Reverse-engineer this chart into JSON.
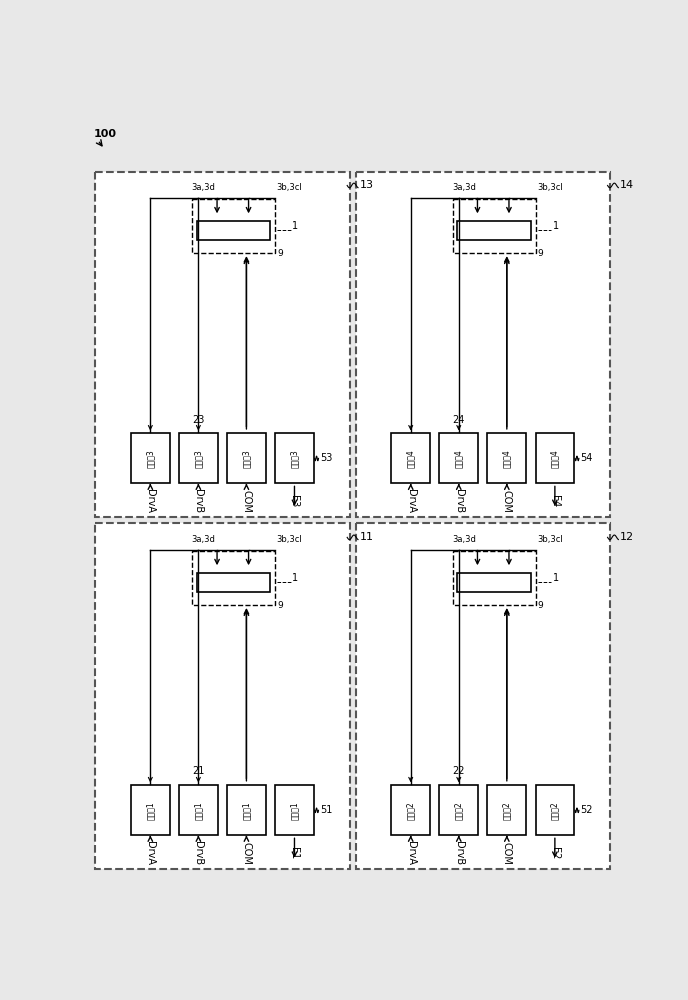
{
  "bg": "#e8e8e8",
  "panel_bg": "#ffffff",
  "panels": [
    {
      "id": "top_left",
      "label": "13",
      "group_num": "23",
      "encoder_label": "53",
      "signal_labels": [
        "DrvA",
        "DrvB",
        "COM",
        "E3"
      ],
      "relay_texts": [
        "继电刨3",
        "继电刨3",
        "继电刨3"
      ],
      "encoder_text": "编码刨3",
      "lbl_3a3d": "3a,3d",
      "lbl_3b3c": "3b,3cl",
      "lbl_9": "9",
      "lbl_1": "1",
      "col": 0,
      "row": 0
    },
    {
      "id": "top_right",
      "label": "14",
      "group_num": "24",
      "encoder_label": "54",
      "signal_labels": [
        "DrvA",
        "DrvB",
        "COM",
        "E4"
      ],
      "relay_texts": [
        "继电刨4",
        "继电刨4",
        "继电刨4"
      ],
      "encoder_text": "编码刨4",
      "lbl_3a3d": "3a,3d",
      "lbl_3b3c": "3b,3cl",
      "lbl_9": "9",
      "lbl_1": "1",
      "col": 1,
      "row": 0
    },
    {
      "id": "bottom_left",
      "label": "11",
      "group_num": "21",
      "encoder_label": "51",
      "signal_labels": [
        "DrvA",
        "DrvB",
        "COM",
        "E1"
      ],
      "relay_texts": [
        "继电刨1",
        "继电刨1",
        "继电刨1"
      ],
      "encoder_text": "编码刨1",
      "lbl_3a3d": "3a,3d",
      "lbl_3b3c": "3b,3cl",
      "lbl_9": "9",
      "lbl_1": "1",
      "col": 0,
      "row": 1
    },
    {
      "id": "bottom_right",
      "label": "12",
      "group_num": "22",
      "encoder_label": "52",
      "signal_labels": [
        "DrvA",
        "DrvB",
        "COM",
        "E2"
      ],
      "relay_texts": [
        "继电刨2",
        "继电刨2",
        "继电刨2"
      ],
      "encoder_text": "编码刨2",
      "lbl_3a3d": "3a,3d",
      "lbl_3b3c": "3b,3cl",
      "lbl_9": "9",
      "lbl_1": "1",
      "col": 1,
      "row": 1
    }
  ]
}
